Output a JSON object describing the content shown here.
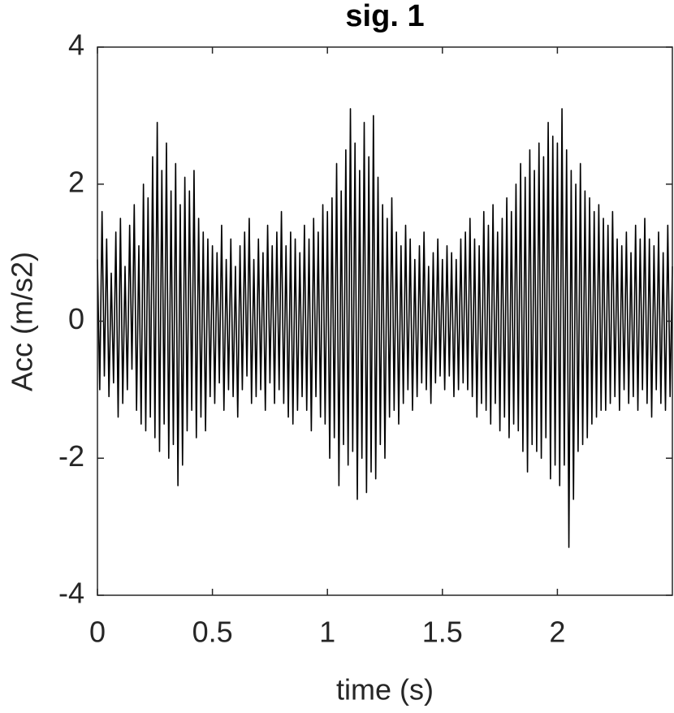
{
  "chart_data": {
    "type": "line",
    "title": "sig. 1",
    "x_label": "time (s)",
    "y_label": "Acc (m/s2)",
    "color": "#000000",
    "xlim": [
      0,
      2.5
    ],
    "xticks": [
      0,
      0.5,
      1,
      1.5,
      2
    ],
    "ylim": [
      -4,
      4
    ],
    "yticks": [
      -4,
      -2,
      0,
      2,
      4
    ],
    "grid": false,
    "x": [
      0,
      0.01,
      0.02,
      0.03,
      0.04,
      0.05,
      0.06,
      0.07,
      0.08,
      0.09,
      0.1,
      0.11,
      0.12,
      0.13,
      0.14,
      0.15,
      0.16,
      0.17,
      0.18,
      0.19,
      0.2,
      0.21,
      0.22,
      0.23,
      0.24,
      0.25,
      0.26,
      0.27,
      0.28,
      0.29,
      0.3,
      0.31,
      0.32,
      0.33,
      0.34,
      0.35,
      0.36,
      0.37,
      0.38,
      0.39,
      0.4,
      0.41,
      0.42,
      0.43,
      0.44,
      0.45,
      0.46,
      0.47,
      0.48,
      0.49,
      0.5,
      0.51,
      0.52,
      0.53,
      0.54,
      0.55,
      0.56,
      0.57,
      0.58,
      0.59,
      0.6,
      0.61,
      0.62,
      0.63,
      0.64,
      0.65,
      0.66,
      0.67,
      0.68,
      0.69,
      0.7,
      0.71,
      0.72,
      0.73,
      0.74,
      0.75,
      0.76,
      0.77,
      0.78,
      0.79,
      0.8,
      0.81,
      0.82,
      0.83,
      0.84,
      0.85,
      0.86,
      0.87,
      0.88,
      0.89,
      0.9,
      0.91,
      0.92,
      0.93,
      0.94,
      0.95,
      0.96,
      0.97,
      0.98,
      0.99,
      1,
      1.01,
      1.02,
      1.03,
      1.04,
      1.05,
      1.06,
      1.07,
      1.08,
      1.09,
      1.1,
      1.11,
      1.12,
      1.13,
      1.14,
      1.15,
      1.16,
      1.17,
      1.18,
      1.19,
      1.2,
      1.21,
      1.22,
      1.23,
      1.24,
      1.25,
      1.26,
      1.27,
      1.28,
      1.29,
      1.3,
      1.31,
      1.32,
      1.33,
      1.34,
      1.35,
      1.36,
      1.37,
      1.38,
      1.39,
      1.4,
      1.41,
      1.42,
      1.43,
      1.44,
      1.45,
      1.46,
      1.47,
      1.48,
      1.49,
      1.5,
      1.51,
      1.52,
      1.53,
      1.54,
      1.55,
      1.56,
      1.57,
      1.58,
      1.59,
      1.6,
      1.61,
      1.62,
      1.63,
      1.64,
      1.65,
      1.66,
      1.67,
      1.68,
      1.69,
      1.7,
      1.71,
      1.72,
      1.73,
      1.74,
      1.75,
      1.76,
      1.77,
      1.78,
      1.79,
      1.8,
      1.81,
      1.82,
      1.83,
      1.84,
      1.85,
      1.86,
      1.87,
      1.88,
      1.89,
      1.9,
      1.91,
      1.92,
      1.93,
      1.94,
      1.95,
      1.96,
      1.97,
      1.98,
      1.99,
      2,
      2.01,
      2.02,
      2.03,
      2.04,
      2.05,
      2.06,
      2.07,
      2.08,
      2.09,
      2.1,
      2.11,
      2.12,
      2.13,
      2.14,
      2.15,
      2.16,
      2.17,
      2.18,
      2.19,
      2.2,
      2.21,
      2.22,
      2.23,
      2.24,
      2.25,
      2.26,
      2.27,
      2.28,
      2.29,
      2.3,
      2.31,
      2.32,
      2.33,
      2.34,
      2.35,
      2.36,
      2.37,
      2.38,
      2.39,
      2.4,
      2.41,
      2.42,
      2.43,
      2.44,
      2.45,
      2.46,
      2.47,
      2.48,
      2.49,
      2.5
    ],
    "values": [
      0.9,
      -1.0,
      1.6,
      -0.8,
      1.2,
      -1.1,
      0.7,
      -0.9,
      1.3,
      -1.4,
      1.5,
      -1.2,
      0.8,
      -1.0,
      1.4,
      -0.7,
      1.7,
      -1.3,
      1.1,
      -1.5,
      2.0,
      -1.6,
      1.8,
      -1.4,
      2.4,
      -1.7,
      2.9,
      -1.9,
      2.2,
      -1.5,
      2.6,
      -2.0,
      1.9,
      -1.8,
      2.3,
      -2.4,
      1.7,
      -2.1,
      2.1,
      -1.6,
      1.9,
      -1.3,
      2.2,
      -1.7,
      1.5,
      -1.4,
      1.3,
      -1.6,
      1.2,
      -1.1,
      1.1,
      -1.2,
      1.0,
      -0.9,
      1.4,
      -1.3,
      0.9,
      -1.0,
      1.2,
      -1.1,
      0.8,
      -1.4,
      1.1,
      -1.0,
      1.3,
      -0.8,
      1.5,
      -1.2,
      0.9,
      -1.1,
      1.2,
      -1.0,
      1.0,
      -1.3,
      1.4,
      -0.9,
      1.1,
      -1.2,
      1.3,
      -1.0,
      1.6,
      -1.2,
      1.1,
      -1.4,
      1.3,
      -1.5,
      1.2,
      -1.3,
      1.0,
      -1.1,
      1.4,
      -1.3,
      1.2,
      -1.6,
      1.5,
      -1.1,
      1.3,
      -1.4,
      1.7,
      -1.5,
      1.6,
      -2.0,
      1.8,
      -1.7,
      2.3,
      -2.4,
      1.9,
      -1.8,
      2.5,
      -2.1,
      3.1,
      -1.9,
      2.6,
      -2.6,
      2.2,
      -2.0,
      2.9,
      -2.5,
      2.4,
      -2.2,
      3.0,
      -2.3,
      2.1,
      -1.8,
      1.7,
      -2.0,
      1.5,
      -1.4,
      1.8,
      -1.3,
      1.3,
      -1.5,
      1.1,
      -1.2,
      1.4,
      -1.0,
      1.2,
      -1.3,
      0.9,
      -1.1,
      1.1,
      -0.9,
      1.3,
      -1.0,
      0.8,
      -1.2,
      1.0,
      -0.9,
      1.2,
      -0.8,
      0.9,
      -1.0,
      1.1,
      -0.8,
      1.0,
      -1.1,
      0.9,
      -1.0,
      1.2,
      -0.9,
      1.3,
      -1.0,
      1.5,
      -1.1,
      1.2,
      -1.4,
      1.1,
      -1.2,
      1.6,
      -1.3,
      1.4,
      -1.5,
      1.7,
      -1.2,
      1.3,
      -1.6,
      1.5,
      -1.4,
      1.8,
      -1.7,
      1.6,
      -1.5,
      2.0,
      -1.6,
      2.3,
      -1.9,
      2.1,
      -2.2,
      2.5,
      -1.8,
      2.2,
      -1.9,
      2.6,
      -2.0,
      2.4,
      -1.7,
      2.9,
      -2.3,
      2.7,
      -2.1,
      2.6,
      -2.4,
      3.1,
      -2.1,
      2.5,
      -3.3,
      2.2,
      -2.6,
      2.0,
      -1.9,
      2.3,
      -1.8,
      1.9,
      -1.7,
      1.8,
      -1.5,
      1.6,
      -1.4,
      1.7,
      -1.3,
      1.5,
      -1.3,
      1.4,
      -1.2,
      1.6,
      -1.1,
      1.2,
      -1.3,
      1.1,
      -1.0,
      1.3,
      -1.2,
      1.0,
      -1.1,
      1.4,
      -1.3,
      1.2,
      -1.0,
      1.5,
      -1.2,
      1.2,
      -1.4,
      1.1,
      -1.0,
      1.3,
      -1.2,
      1.0,
      -1.3,
      1.4,
      -1.1,
      0.8
    ]
  }
}
